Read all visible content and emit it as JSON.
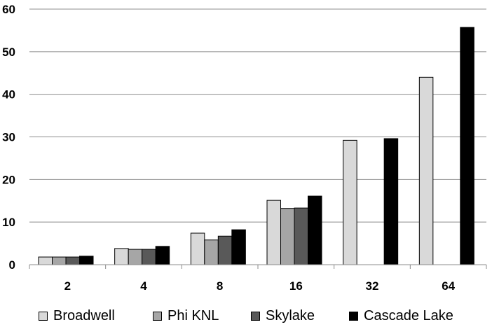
{
  "chart_data": {
    "type": "bar",
    "categories": [
      "2",
      "4",
      "8",
      "16",
      "32",
      "64"
    ],
    "series": [
      {
        "name": "Broadwell",
        "color": "#d9d9d9",
        "values": [
          1.8,
          3.8,
          7.4,
          15.1,
          29.2,
          44.0
        ]
      },
      {
        "name": "Phi KNL",
        "color": "#a6a6a6",
        "values": [
          1.8,
          3.6,
          5.8,
          13.2,
          null,
          null
        ]
      },
      {
        "name": "Skylake",
        "color": "#595959",
        "values": [
          1.8,
          3.6,
          6.7,
          13.3,
          null,
          null
        ]
      },
      {
        "name": "Cascade Lake",
        "color": "#000000",
        "values": [
          2.0,
          4.3,
          8.2,
          16.1,
          29.6,
          55.7
        ]
      }
    ],
    "yticks": [
      0,
      10,
      20,
      30,
      40,
      50,
      60
    ],
    "ylim": [
      0,
      60
    ],
    "grid": true,
    "legend_position": "bottom"
  }
}
